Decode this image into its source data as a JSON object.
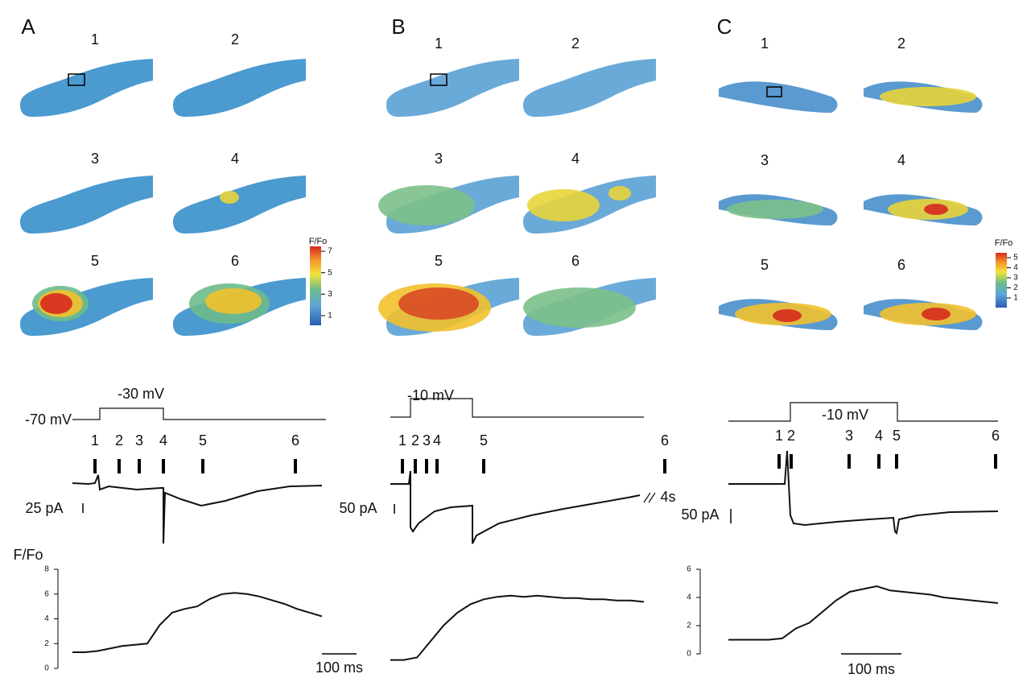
{
  "panels": [
    {
      "letter": "A",
      "images": [
        "1",
        "2",
        "3",
        "4",
        "5",
        "6"
      ],
      "colorbar": {
        "title": "F/Fo",
        "labels": [
          7,
          5,
          3,
          1
        ]
      },
      "holding": "-70 mV",
      "step": "-30 mV",
      "markers": [
        "1",
        "2",
        "3",
        "4",
        "5",
        "6"
      ],
      "current_scale": "25 pA",
      "fluorescence": {
        "title": "F/Fo",
        "ylim": [
          0,
          8
        ],
        "yticks": [
          0,
          2,
          4,
          6,
          8
        ],
        "values": [
          1.3,
          1.3,
          1.4,
          1.6,
          1.8,
          1.9,
          2.0,
          3.5,
          4.5,
          4.8,
          5.0,
          5.6,
          6.0,
          6.1,
          6.0,
          5.8,
          5.5,
          5.2,
          4.8,
          4.5,
          4.2
        ]
      },
      "time_scale": "100 ms"
    },
    {
      "letter": "B",
      "images": [
        "1",
        "2",
        "3",
        "4",
        "5",
        "6"
      ],
      "step": "-10 mV",
      "markers": [
        "1",
        "2",
        "3",
        "4",
        "5",
        "6"
      ],
      "current_scale": "50 pA",
      "break_label": "4s",
      "fluorescence": {
        "values": [
          1.0,
          1.0,
          1.2,
          2.5,
          3.8,
          4.8,
          5.5,
          5.9,
          6.1,
          6.2,
          6.1,
          6.2,
          6.1,
          6.0,
          6.0,
          5.9,
          5.9,
          5.8,
          5.8,
          5.7
        ]
      }
    },
    {
      "letter": "C",
      "images": [
        "1",
        "2",
        "3",
        "4",
        "5",
        "6"
      ],
      "colorbar": {
        "title": "F/Fo",
        "labels": [
          5,
          4,
          3,
          2,
          1
        ]
      },
      "step": "-10 mV",
      "markers": [
        "1",
        "2",
        "3",
        "4",
        "5",
        "6"
      ],
      "current_scale": "50 pA",
      "fluorescence": {
        "ylim": [
          0,
          6
        ],
        "yticks": [
          0,
          2,
          4,
          6
        ],
        "values": [
          1.0,
          1.0,
          1.0,
          1.0,
          1.1,
          1.8,
          2.2,
          3.0,
          3.8,
          4.4,
          4.6,
          4.8,
          4.5,
          4.4,
          4.3,
          4.2,
          4.0,
          3.9,
          3.8,
          3.7,
          3.6
        ]
      },
      "time_scale": "100 ms"
    }
  ]
}
